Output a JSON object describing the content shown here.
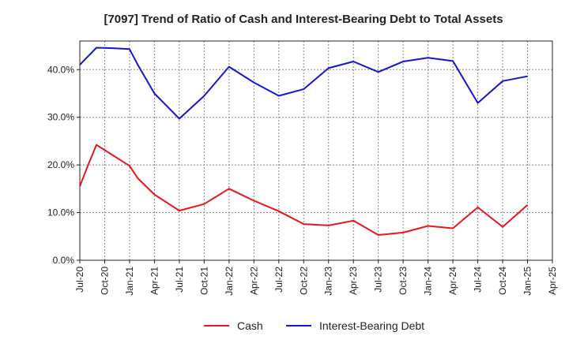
{
  "chart_data": {
    "type": "line",
    "title": "[7097]  Trend of Ratio of Cash and Interest-Bearing Debt to Total Assets",
    "xlabel": "",
    "ylabel": "",
    "x_ticks": [
      "Jul-20",
      "Oct-20",
      "Jan-21",
      "Apr-21",
      "Jul-21",
      "Oct-21",
      "Jan-22",
      "Apr-22",
      "Jul-22",
      "Oct-22",
      "Jan-23",
      "Apr-23",
      "Jul-23",
      "Oct-23",
      "Jan-24",
      "Apr-24",
      "Jul-24",
      "Oct-24",
      "Jan-25",
      "Apr-25"
    ],
    "y_ticks": [
      "0.0%",
      "10.0%",
      "20.0%",
      "30.0%",
      "40.0%"
    ],
    "ylim": [
      0,
      46
    ],
    "x_points": [
      "Jul-20",
      "Aug-20",
      "Sep-20",
      "Nov-20",
      "Jan-21",
      "Feb-21",
      "Apr-21",
      "Jul-21",
      "Oct-21",
      "Jan-22",
      "Apr-22",
      "Jul-22",
      "Oct-22",
      "Jan-23",
      "Apr-23",
      "Jul-23",
      "Oct-23",
      "Jan-24",
      "Apr-24",
      "Jul-24",
      "Oct-24",
      "Jan-25"
    ],
    "series": [
      {
        "name": "Cash",
        "color": "#e8161b",
        "values": [
          15.5,
          20.0,
          24.2,
          22.0,
          19.8,
          17.2,
          13.8,
          10.4,
          11.8,
          15.0,
          12.5,
          10.3,
          7.6,
          7.3,
          8.3,
          5.3,
          5.8,
          7.2,
          6.7,
          11.1,
          7.0,
          11.6
        ]
      },
      {
        "name": "Interest-Bearing Debt",
        "color": "#1515d2",
        "values": [
          41.0,
          42.8,
          44.6,
          44.5,
          44.3,
          41.0,
          35.0,
          29.7,
          34.5,
          40.6,
          37.3,
          34.5,
          35.9,
          40.3,
          41.7,
          39.5,
          41.7,
          42.5,
          41.8,
          33.0,
          37.6,
          38.6
        ]
      }
    ],
    "grid": true,
    "legend_position": "bottom-center",
    "legend": [
      {
        "label": "Cash",
        "color": "#e8161b"
      },
      {
        "label": "Interest-Bearing Debt",
        "color": "#1515d2"
      }
    ]
  }
}
